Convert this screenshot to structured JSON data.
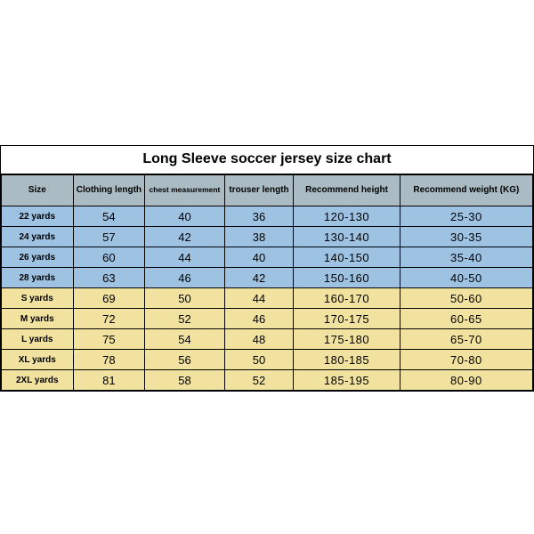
{
  "title": "Long Sleeve soccer jersey size chart",
  "columns": [
    "Size",
    "Clothing length",
    "chest measurement",
    "trouser length",
    "Recommend height",
    "Recommend weight (KG)"
  ],
  "column_widths_pct": [
    13.5,
    13.5,
    15,
    13,
    20,
    25
  ],
  "header_bg": "#aabbc4",
  "blue_row_bg": "#9ec2e2",
  "cream_row_bg": "#f2e2a0",
  "border_color": "#000000",
  "background_color": "#ffffff",
  "title_fontsize": 16,
  "header_fontsize": 10,
  "cell_fontsize": 13,
  "size_col_fontsize": 10,
  "row_groups": [
    {
      "color": "blue",
      "rows": [
        {
          "size": "22 yards",
          "clothing_length": "54",
          "chest": "40",
          "trouser": "36",
          "height": "120-130",
          "weight": "25-30"
        },
        {
          "size": "24 yards",
          "clothing_length": "57",
          "chest": "42",
          "trouser": "38",
          "height": "130-140",
          "weight": "30-35"
        },
        {
          "size": "26 yards",
          "clothing_length": "60",
          "chest": "44",
          "trouser": "40",
          "height": "140-150",
          "weight": "35-40"
        },
        {
          "size": "28 yards",
          "clothing_length": "63",
          "chest": "46",
          "trouser": "42",
          "height": "150-160",
          "weight": "40-50"
        }
      ]
    },
    {
      "color": "cream",
      "rows": [
        {
          "size": "S yards",
          "clothing_length": "69",
          "chest": "50",
          "trouser": "44",
          "height": "160-170",
          "weight": "50-60"
        },
        {
          "size": "M yards",
          "clothing_length": "72",
          "chest": "52",
          "trouser": "46",
          "height": "170-175",
          "weight": "60-65"
        },
        {
          "size": "L yards",
          "clothing_length": "75",
          "chest": "54",
          "trouser": "48",
          "height": "175-180",
          "weight": "65-70"
        },
        {
          "size": "XL yards",
          "clothing_length": "78",
          "chest": "56",
          "trouser": "50",
          "height": "180-185",
          "weight": "70-80"
        },
        {
          "size": "2XL yards",
          "clothing_length": "81",
          "chest": "58",
          "trouser": "52",
          "height": "185-195",
          "weight": "80-90"
        }
      ]
    }
  ]
}
